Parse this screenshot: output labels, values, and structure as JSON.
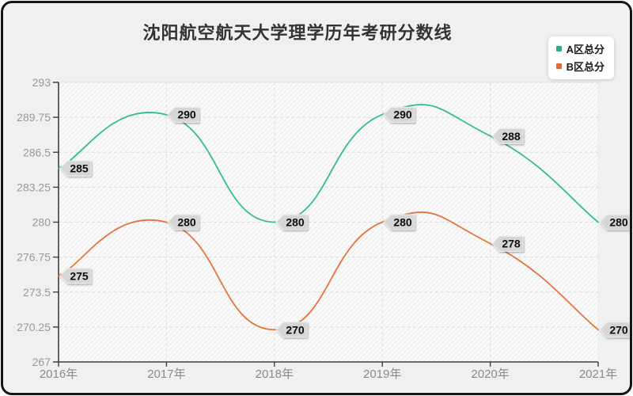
{
  "title": "沈阳航空航天大学理学历年考研分数线",
  "legend": [
    {
      "label": "A区总分",
      "color": "#2aaf79"
    },
    {
      "label": "B区总分",
      "color": "#e06a30"
    }
  ],
  "chart_data": {
    "type": "line",
    "smooth": true,
    "title": "沈阳航空航天大学理学历年考研分数线",
    "x": [
      "2016年",
      "2017年",
      "2018年",
      "2019年",
      "2020年",
      "2021年"
    ],
    "series": [
      {
        "name": "A区总分",
        "color": "#35bd87",
        "values": [
          285,
          290,
          280,
          290,
          288,
          280
        ]
      },
      {
        "name": "B区总分",
        "color": "#e5753f",
        "values": [
          275,
          280,
          270,
          280,
          278,
          270
        ]
      }
    ],
    "ylim": [
      267,
      293
    ],
    "yticks": [
      267,
      270.25,
      273.5,
      276.75,
      280,
      283.25,
      286.5,
      289.75,
      293
    ],
    "grid": true,
    "data_labels": true,
    "legend_position": "top-right"
  },
  "colors": {
    "axis": "#3f3f3f",
    "tick_label": "#999999",
    "x_tick_label": "#8a8a8a",
    "grid": "#dcdcdc",
    "plot_bg": "#fafafa",
    "plot_border": "#e9e9e9",
    "hatch": "#ececec",
    "badge_bg": "#d6d6d6",
    "badge_border": "#efefef",
    "badge_text": "#111111",
    "card_bg": "#f0f0f0",
    "frame": "#151515"
  }
}
